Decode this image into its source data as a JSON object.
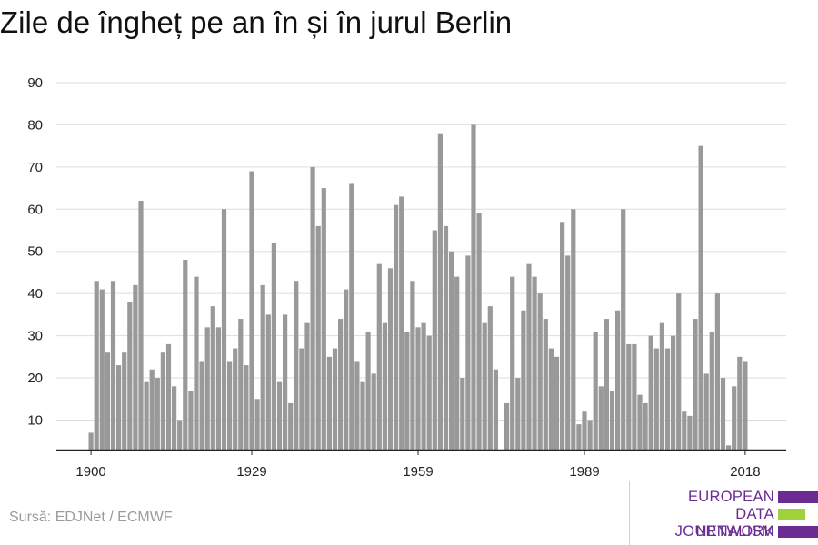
{
  "title": "Zile de îngheț pe an în și în jurul Berlin",
  "source": "Sursă: EDJNet / ECMWF",
  "logo": {
    "lines": [
      "EUROPEAN",
      "DATA JOURNALISM",
      "NETWORK"
    ],
    "colors": [
      "#6b2c91",
      "#9fd13a",
      "#6b2c91"
    ]
  },
  "chart_data": {
    "type": "bar",
    "x": [
      1900,
      1901,
      1902,
      1903,
      1904,
      1905,
      1906,
      1907,
      1908,
      1909,
      1910,
      1911,
      1912,
      1913,
      1914,
      1915,
      1916,
      1917,
      1918,
      1919,
      1920,
      1921,
      1922,
      1923,
      1924,
      1925,
      1926,
      1927,
      1928,
      1929,
      1930,
      1931,
      1932,
      1933,
      1934,
      1935,
      1936,
      1937,
      1938,
      1939,
      1940,
      1941,
      1942,
      1943,
      1944,
      1945,
      1946,
      1947,
      1948,
      1949,
      1950,
      1951,
      1952,
      1953,
      1954,
      1955,
      1956,
      1957,
      1958,
      1959,
      1960,
      1961,
      1962,
      1963,
      1964,
      1965,
      1966,
      1967,
      1968,
      1969,
      1970,
      1971,
      1972,
      1973,
      1974,
      1975,
      1976,
      1977,
      1978,
      1979,
      1980,
      1981,
      1982,
      1983,
      1984,
      1985,
      1986,
      1987,
      1988,
      1989,
      1990,
      1991,
      1992,
      1993,
      1994,
      1995,
      1996,
      1997,
      1998,
      1999,
      2000,
      2001,
      2002,
      2003,
      2004,
      2005,
      2006,
      2007,
      2008,
      2009,
      2010,
      2011,
      2012,
      2013,
      2014,
      2015,
      2016,
      2017,
      2018
    ],
    "values": [
      7,
      43,
      41,
      26,
      43,
      23,
      26,
      38,
      42,
      62,
      19,
      22,
      20,
      26,
      28,
      18,
      10,
      48,
      17,
      44,
      24,
      32,
      37,
      32,
      60,
      24,
      27,
      34,
      23,
      69,
      15,
      42,
      35,
      52,
      19,
      35,
      14,
      43,
      27,
      33,
      70,
      56,
      65,
      25,
      27,
      34,
      41,
      66,
      24,
      19,
      31,
      21,
      47,
      33,
      46,
      61,
      63,
      31,
      43,
      32,
      33,
      30,
      55,
      78,
      56,
      50,
      44,
      20,
      49,
      80,
      59,
      33,
      37,
      22,
      3,
      14,
      44,
      20,
      36,
      47,
      44,
      40,
      34,
      27,
      25,
      57,
      49,
      60,
      9,
      12,
      10,
      31,
      18,
      34,
      17,
      36,
      60,
      28,
      28,
      16,
      14,
      30,
      27,
      33,
      27,
      30,
      40,
      12,
      11,
      34,
      75,
      21,
      31,
      40,
      20,
      4,
      18,
      25,
      24
    ],
    "ylim": [
      3,
      90
    ],
    "yticks": [
      10,
      20,
      30,
      40,
      50,
      60,
      70,
      80,
      90
    ],
    "xticks": [
      1900,
      1929,
      1959,
      1989,
      2018
    ],
    "bar_color": "#999999",
    "grid": true,
    "xlabel": "",
    "ylabel": ""
  }
}
